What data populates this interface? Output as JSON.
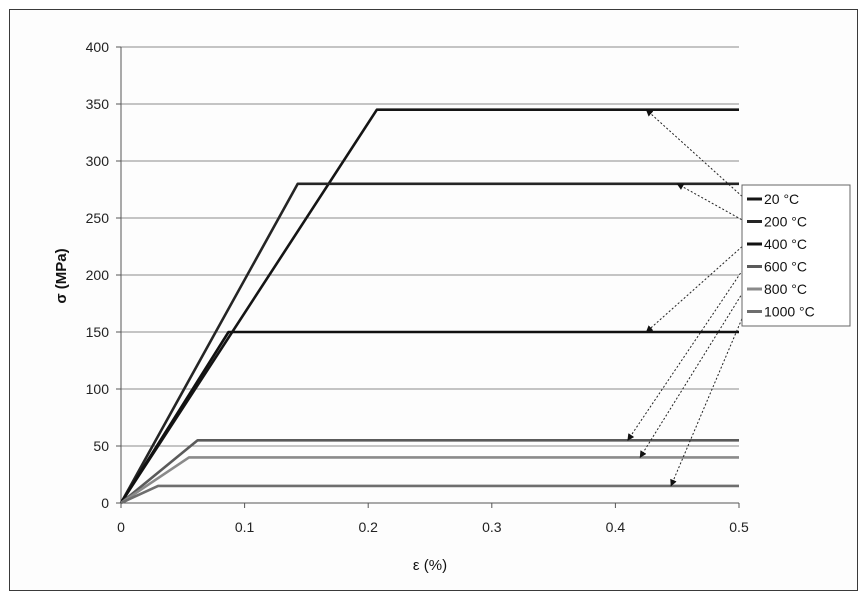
{
  "chart_data": {
    "type": "line",
    "title": "",
    "xlabel": "ε (%)",
    "ylabel": "σ (MPa)",
    "xlim": [
      0,
      0.5
    ],
    "ylim": [
      0,
      400
    ],
    "xticks": [
      "0",
      "0.1",
      "0.2",
      "0.3",
      "0.4",
      "0.5"
    ],
    "yticks": [
      "0",
      "50",
      "100",
      "150",
      "200",
      "250",
      "300",
      "350",
      "400"
    ],
    "xtick_values": [
      0,
      0.1,
      0.2,
      0.3,
      0.4,
      0.5
    ],
    "ytick_values": [
      0,
      50,
      100,
      150,
      200,
      250,
      300,
      350,
      400
    ],
    "grid": "horizontal",
    "legend_position": "right",
    "series": [
      {
        "name": "20 °C",
        "color": "#151515",
        "x": [
          0,
          0.207,
          0.5
        ],
        "y": [
          0,
          345,
          345
        ]
      },
      {
        "name": "200 °C",
        "color": "#252525",
        "x": [
          0,
          0.143,
          0.5
        ],
        "y": [
          0,
          280,
          280
        ]
      },
      {
        "name": "400 °C",
        "color": "#111111",
        "x": [
          0,
          0.087,
          0.5
        ],
        "y": [
          0,
          150,
          150
        ]
      },
      {
        "name": "600 °C",
        "color": "#5a5a5a",
        "x": [
          0,
          0.062,
          0.5
        ],
        "y": [
          0,
          55,
          55
        ]
      },
      {
        "name": "800 °C",
        "color": "#8a8a8a",
        "x": [
          0,
          0.055,
          0.5
        ],
        "y": [
          0,
          40,
          40
        ]
      },
      {
        "name": "1000 °C",
        "color": "#6e6e6e",
        "x": [
          0,
          0.03,
          0.5
        ],
        "y": [
          0,
          15,
          15
        ]
      }
    ],
    "annotations": [
      {
        "label": "20 °C",
        "from_legend": 0,
        "to": [
          0.425,
          345
        ]
      },
      {
        "label": "200 °C",
        "from_legend": 1,
        "to": [
          0.45,
          280
        ]
      },
      {
        "label": "400 °C",
        "from_legend": 2,
        "to": [
          0.425,
          150
        ]
      },
      {
        "label": "600 °C",
        "from_legend": 3,
        "to": [
          0.41,
          55
        ]
      },
      {
        "label": "800 °C",
        "from_legend": 4,
        "to": [
          0.42,
          40
        ]
      },
      {
        "label": "1000 °C",
        "from_legend": 5,
        "to": [
          0.445,
          15
        ]
      }
    ]
  }
}
